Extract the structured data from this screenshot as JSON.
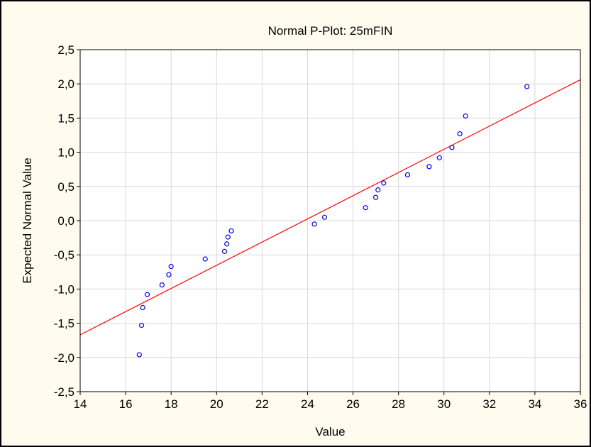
{
  "colors": {
    "background": "#fffcef",
    "plot_background": "#ffffff",
    "grid": "#d8d8d8",
    "points": "#0000ff",
    "fit_line": "#ff0000"
  },
  "chart_data": {
    "type": "scatter",
    "title": "Normal P-Plot: 25mFIN",
    "xlabel": "Value",
    "ylabel": "Expected Normal Value",
    "xlim": [
      14,
      36
    ],
    "ylim": [
      -2.5,
      2.5
    ],
    "grid": true,
    "x_ticks": [
      "14",
      "16",
      "18",
      "20",
      "22",
      "24",
      "26",
      "28",
      "30",
      "32",
      "34",
      "36"
    ],
    "y_ticks": [
      "2,5",
      "2,0",
      "1,5",
      "1,0",
      "0,5",
      "0,0",
      "-0,5",
      "-1,0",
      "-1,5",
      "-2,0",
      "-2,5"
    ],
    "series": [
      {
        "marker": "circle",
        "x": [
          16.6,
          16.7,
          16.75,
          16.95,
          17.6,
          17.9,
          18.0,
          19.5,
          20.35,
          20.45,
          20.5,
          20.65,
          24.3,
          24.75,
          26.55,
          27.0,
          27.1,
          27.35,
          28.4,
          29.35,
          29.8,
          30.35,
          30.7,
          30.95,
          33.65
        ],
        "y": [
          -1.96,
          -1.53,
          -1.27,
          -1.08,
          -0.94,
          -0.79,
          -0.67,
          -0.56,
          -0.45,
          -0.34,
          -0.24,
          -0.15,
          -0.05,
          0.05,
          0.19,
          0.34,
          0.45,
          0.55,
          0.67,
          0.79,
          0.92,
          1.07,
          1.27,
          1.53,
          1.96
        ]
      }
    ],
    "fit_line": {
      "x": [
        14,
        36
      ],
      "y": [
        -1.67,
        2.06
      ]
    }
  }
}
